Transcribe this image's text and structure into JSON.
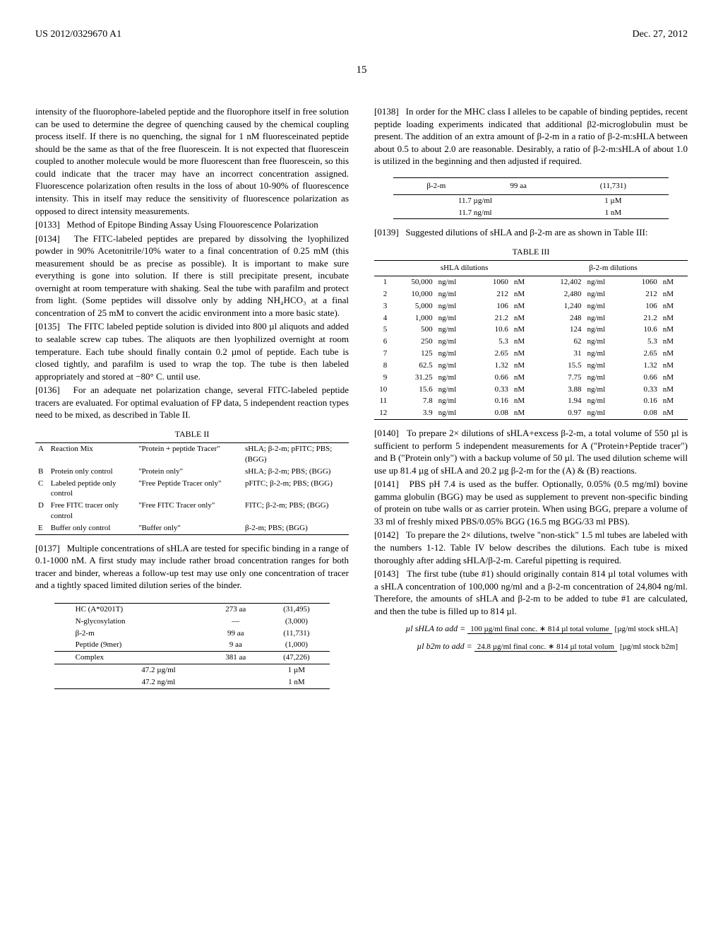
{
  "header": {
    "left": "US 2012/0329670 A1",
    "right": "Dec. 27, 2012"
  },
  "pagenum": "15",
  "left": {
    "p_cont": "intensity of the fluorophore-labeled peptide and the fluorophore itself in free solution can be used to determine the degree of quenching caused by the chemical coupling process itself. If there is no quenching, the signal for 1 nM fluoresceinated peptide should be the same as that of the free fluorescein. It is not expected that fluorescein coupled to another molecule would be more fluorescent than free fluorescein, so this could indicate that the tracer may have an incorrect concentration assigned. Fluorescence polarization often results in the loss of about 10-90% of fluorescence intensity. This in itself may reduce the sensitivity of fluorescence polarization as opposed to direct intensity measurements.",
    "p0133": "Method of Epitope Binding Assay Using Flouorescence Polarization",
    "p0134": "The FITC-labeled peptides are prepared by dissolving the lyophilized powder in 90% Acetonitrile/10% water to a final concentration of 0.25 mM (this measurement should be as precise as possible). It is important to make sure everything is gone into solution. If there is still precipitate present, incubate overnight at room temperature with shaking. Seal the tube with parafilm and protect from light. (Some peptides will dissolve only by adding NH₄HCO₃ at a final concentration of 25 mM to convert the acidic environment into a more basic state).",
    "p0135": "The FITC labeled peptide solution is divided into 800 µl aliquots and added to sealable screw cap tubes. The aliquots are then lyophilized overnight at room temperature. Each tube should finally contain 0.2 µmol of peptide. Each tube is closed tightly, and parafilm is used to wrap the top. The tube is then labeled appropriately and stored at −80° C. until use.",
    "p0136": "For an adequate net polarization change, several FITC-labeled peptide tracers are evaluated. For optimal evaluation of FP data, 5 independent reaction types need to be mixed, as described in Table II.",
    "table2_cap": "TABLE II",
    "t2": {
      "rows": [
        [
          "A",
          "Reaction Mix",
          "\"Protein + peptide Tracer\"",
          "sHLA; β-2-m; pFITC; PBS; (BGG)"
        ],
        [
          "B",
          "Protein only control",
          "\"Protein only\"",
          "sHLA; β-2-m; PBS; (BGG)"
        ],
        [
          "C",
          "Labeled peptide only control",
          "\"Free Peptide Tracer only\"",
          "pFITC; β-2-m; PBS; (BGG)"
        ],
        [
          "D",
          "Free FITC tracer only control",
          "\"Free FITC Tracer only\"",
          "FITC; β-2-m; PBS; (BGG)"
        ],
        [
          "E",
          "Buffer only control",
          "\"Buffer only\"",
          "β-2-m; PBS; (BGG)"
        ]
      ]
    },
    "p0137": "Multiple concentrations of sHLA are tested for specific binding in a range of 0.1-1000 nM. A first study may include rather broad concentration ranges for both tracer and binder, whereas a follow-up test may use only one concentration of tracer and a tightly spaced limited dilution series of the binder.",
    "tcomplex": {
      "rows": [
        [
          "HC (A*0201T)",
          "273 aa",
          "(31,495)"
        ],
        [
          "N-glycosylation",
          "—",
          "(3,000)"
        ],
        [
          "β-2-m",
          "99 aa",
          "(11,731)"
        ],
        [
          "Peptide (9mer)",
          "9 aa",
          "(1,000)"
        ]
      ],
      "sumrow": [
        "Complex",
        "381 aa",
        "(47,226)"
      ],
      "foot": [
        [
          "47.2 µg/ml",
          "1 µM"
        ],
        [
          "47.2 ng/ml",
          "1 nM"
        ]
      ]
    }
  },
  "right": {
    "p0138": "In order for the MHC class I alleles to be capable of binding peptides, recent peptide loading experiments indicated that additional β2-microglobulin must be present. The addition of an extra amount of β-2-m in a ratio of β-2-m:sHLA between about 0.5 to about 2.0 are reasonable. Desirably, a ratio of β-2-m:sHLA of about 1.0 is utilized in the beginning and then adjusted if required.",
    "tb2m": {
      "header": [
        "β-2-m",
        "99 aa",
        "(11,731)"
      ],
      "foot": [
        [
          "11.7 µg/ml",
          "1 µM"
        ],
        [
          "11.7 ng/ml",
          "1 nM"
        ]
      ]
    },
    "p0139": "Suggested dilutions of sHLA and β-2-m are as shown in Table III:",
    "table3_cap": "TABLE III",
    "t3": {
      "head": [
        "sHLA dilutions",
        "β-2-m dilutions"
      ],
      "rows": [
        [
          "1",
          "50,000",
          "ng/ml",
          "1060",
          "nM",
          "12,402",
          "ng/ml",
          "1060",
          "nM"
        ],
        [
          "2",
          "10,000",
          "ng/ml",
          "212",
          "nM",
          "2,480",
          "ng/ml",
          "212",
          "nM"
        ],
        [
          "3",
          "5,000",
          "ng/ml",
          "106",
          "nM",
          "1,240",
          "ng/ml",
          "106",
          "nM"
        ],
        [
          "4",
          "1,000",
          "ng/ml",
          "21.2",
          "nM",
          "248",
          "ng/ml",
          "21.2",
          "nM"
        ],
        [
          "5",
          "500",
          "ng/ml",
          "10.6",
          "nM",
          "124",
          "ng/ml",
          "10.6",
          "nM"
        ],
        [
          "6",
          "250",
          "ng/ml",
          "5.3",
          "nM",
          "62",
          "ng/ml",
          "5.3",
          "nM"
        ],
        [
          "7",
          "125",
          "ng/ml",
          "2.65",
          "nM",
          "31",
          "ng/ml",
          "2.65",
          "nM"
        ],
        [
          "8",
          "62.5",
          "ng/ml",
          "1.32",
          "nM",
          "15.5",
          "ng/ml",
          "1.32",
          "nM"
        ],
        [
          "9",
          "31.25",
          "ng/ml",
          "0.66",
          "nM",
          "7.75",
          "ng/ml",
          "0.66",
          "nM"
        ],
        [
          "10",
          "15.6",
          "ng/ml",
          "0.33",
          "nM",
          "3.88",
          "ng/ml",
          "0.33",
          "nM"
        ],
        [
          "11",
          "7.8",
          "ng/ml",
          "0.16",
          "nM",
          "1.94",
          "ng/ml",
          "0.16",
          "nM"
        ],
        [
          "12",
          "3.9",
          "ng/ml",
          "0.08",
          "nM",
          "0.97",
          "ng/ml",
          "0.08",
          "nM"
        ]
      ]
    },
    "p0140": "To prepare 2× dilutions of sHLA+excess β-2-m, a total volume of 550 µl is sufficient to perform 5 independent measurements for A (\"Protein+Peptide tracer\") and B (\"Protein only\") with a backup volume of 50 µl. The used dilution scheme will use up 81.4 µg of sHLA and 20.2 µg β-2-m for the (A) & (B) reactions.",
    "p0141": "PBS pH 7.4 is used as the buffer. Optionally, 0.05% (0.5 mg/ml) bovine gamma globulin (BGG) may be used as supplement to prevent non-specific binding of protein on tube walls or as carrier protein. When using BGG, prepare a volume of 33 ml of freshly mixed PBS/0.05% BGG (16.5 mg BGG/33 ml PBS).",
    "p0142": "To prepare the 2× dilutions, twelve \"non-stick\" 1.5 ml tubes are labeled with the numbers 1-12. Table IV below describes the dilutions. Each tube is mixed thoroughly after adding sHLA/β-2-m. Careful pipetting is required.",
    "p0143": "The first tube (tube #1) should originally contain 814 µl total volumes with a sHLA concentration of 100,000 ng/ml and a β-2-m concentration of 24,804 ng/ml. Therefore, the amounts of sHLA and β-2-m to be added to tube #1 are calculated, and then the tube is filled up to 814 µl.",
    "eq1": {
      "lhs": "µl sHLA to add =",
      "num": "100 µg/ml final conc. ∗ 814 µl total volume",
      "den": "[µg/ml stock sHLA]"
    },
    "eq2": {
      "lhs": "µl b2m to add =",
      "num": "24.8 µg/ml final conc. ∗ 814 µl total volum",
      "den": "[µg/ml stock b2m]"
    }
  },
  "labels": {
    "p0133": "[0133]",
    "p0134": "[0134]",
    "p0135": "[0135]",
    "p0136": "[0136]",
    "p0137": "[0137]",
    "p0138": "[0138]",
    "p0139": "[0139]",
    "p0140": "[0140]",
    "p0141": "[0141]",
    "p0142": "[0142]",
    "p0143": "[0143]"
  }
}
